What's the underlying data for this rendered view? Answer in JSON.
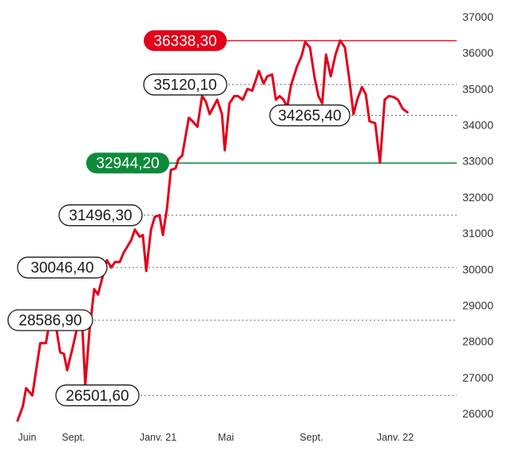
{
  "chart_data": {
    "type": "line",
    "title": "",
    "xlabel": "",
    "ylabel": "",
    "ylim": [
      25700,
      37000
    ],
    "yticks": [
      26000,
      27000,
      28000,
      29000,
      30000,
      31000,
      32000,
      33000,
      34000,
      35000,
      36000,
      37000
    ],
    "ytick_labels": [
      "26000",
      "27000",
      "28000",
      "29000",
      "30000",
      "31000",
      "32000",
      "33000",
      "34000",
      "35000",
      "36000",
      "37000"
    ],
    "x_labels": [
      {
        "label": "Juin",
        "x": 0
      },
      {
        "label": "Sept.",
        "x": 3
      },
      {
        "label": "Janv. 21",
        "x": 7
      },
      {
        "label": "Mai",
        "x": 11
      },
      {
        "label": "Sept.",
        "x": 15
      },
      {
        "label": "Janv. 22",
        "x": 19
      }
    ],
    "xlim": [
      0,
      22.6
    ],
    "grid": "dotted reference lines at annotated levels",
    "line_color": "#e2001a",
    "series": [
      {
        "values": [
          [
            0.0,
            25800
          ],
          [
            0.28,
            26200
          ],
          [
            0.45,
            26700
          ],
          [
            0.78,
            26500
          ],
          [
            1.2,
            27950
          ],
          [
            1.5,
            27950
          ],
          [
            1.68,
            28500
          ],
          [
            1.88,
            28550
          ],
          [
            2.05,
            28350
          ],
          [
            2.25,
            27700
          ],
          [
            2.45,
            27650
          ],
          [
            2.62,
            27200
          ],
          [
            2.9,
            27800
          ],
          [
            3.05,
            28150
          ],
          [
            3.22,
            28550
          ],
          [
            3.42,
            28400
          ],
          [
            3.58,
            26800
          ],
          [
            3.8,
            28300
          ],
          [
            4.05,
            29450
          ],
          [
            4.25,
            29300
          ],
          [
            4.55,
            29900
          ],
          [
            4.72,
            30250
          ],
          [
            4.95,
            30050
          ],
          [
            5.15,
            30200
          ],
          [
            5.4,
            30200
          ],
          [
            5.6,
            30450
          ],
          [
            6.0,
            30800
          ],
          [
            6.2,
            31100
          ],
          [
            6.45,
            30900
          ],
          [
            6.62,
            30950
          ],
          [
            6.8,
            29950
          ],
          [
            7.05,
            31100
          ],
          [
            7.25,
            31450
          ],
          [
            7.5,
            31500
          ],
          [
            7.68,
            30950
          ],
          [
            7.9,
            31700
          ],
          [
            8.1,
            32750
          ],
          [
            8.35,
            32800
          ],
          [
            8.5,
            33050
          ],
          [
            8.7,
            33150
          ],
          [
            9.05,
            34200
          ],
          [
            9.25,
            34100
          ],
          [
            9.5,
            33950
          ],
          [
            9.75,
            34800
          ],
          [
            9.95,
            34650
          ],
          [
            10.15,
            34300
          ],
          [
            10.4,
            34550
          ],
          [
            10.55,
            34700
          ],
          [
            10.8,
            34300
          ],
          [
            10.95,
            33300
          ],
          [
            11.2,
            34600
          ],
          [
            11.45,
            34800
          ],
          [
            11.65,
            34800
          ],
          [
            11.9,
            34700
          ],
          [
            12.15,
            35000
          ],
          [
            12.4,
            34950
          ],
          [
            12.75,
            35500
          ],
          [
            13.0,
            35150
          ],
          [
            13.2,
            35350
          ],
          [
            13.45,
            35400
          ],
          [
            13.65,
            34700
          ],
          [
            13.85,
            34800
          ],
          [
            14.05,
            34700
          ],
          [
            14.25,
            34500
          ],
          [
            14.45,
            35100
          ],
          [
            14.75,
            35600
          ],
          [
            15.0,
            35900
          ],
          [
            15.2,
            36300
          ],
          [
            15.45,
            36150
          ],
          [
            15.7,
            35300
          ],
          [
            15.9,
            34800
          ],
          [
            16.1,
            34600
          ],
          [
            16.3,
            35950
          ],
          [
            16.55,
            35350
          ],
          [
            16.8,
            35950
          ],
          [
            17.05,
            36340
          ],
          [
            17.3,
            36150
          ],
          [
            17.55,
            35200
          ],
          [
            17.75,
            34300
          ],
          [
            17.95,
            34700
          ],
          [
            18.2,
            35050
          ],
          [
            18.4,
            34850
          ],
          [
            18.6,
            34100
          ],
          [
            18.9,
            34050
          ],
          [
            19.15,
            32950
          ],
          [
            19.4,
            34700
          ],
          [
            19.62,
            34800
          ],
          [
            19.85,
            34780
          ],
          [
            20.1,
            34700
          ],
          [
            20.35,
            34450
          ],
          [
            20.6,
            34350
          ]
        ]
      }
    ],
    "reference_lines": [
      {
        "value": 36338.3,
        "label": "36338,30",
        "style": "solid",
        "color": "#e2001a",
        "label_style": "filled"
      },
      {
        "value": 32944.2,
        "label": "32944,20",
        "style": "solid",
        "color": "#0e8a3b",
        "label_style": "filled"
      },
      {
        "value": 35120.1,
        "label": "35120,10",
        "style": "dotted",
        "label_style": "outline"
      },
      {
        "value": 34265.4,
        "label": "34265,40",
        "style": "dotted",
        "label_style": "outline"
      },
      {
        "value": 31496.3,
        "label": "31496,30",
        "style": "dotted",
        "label_style": "outline"
      },
      {
        "value": 30046.4,
        "label": "30046,40",
        "style": "dotted",
        "label_style": "outline"
      },
      {
        "value": 28586.9,
        "label": "28586,90",
        "style": "dotted",
        "label_style": "outline"
      },
      {
        "value": 26501.6,
        "label": "26501,60",
        "style": "dotted",
        "label_style": "outline"
      }
    ]
  }
}
